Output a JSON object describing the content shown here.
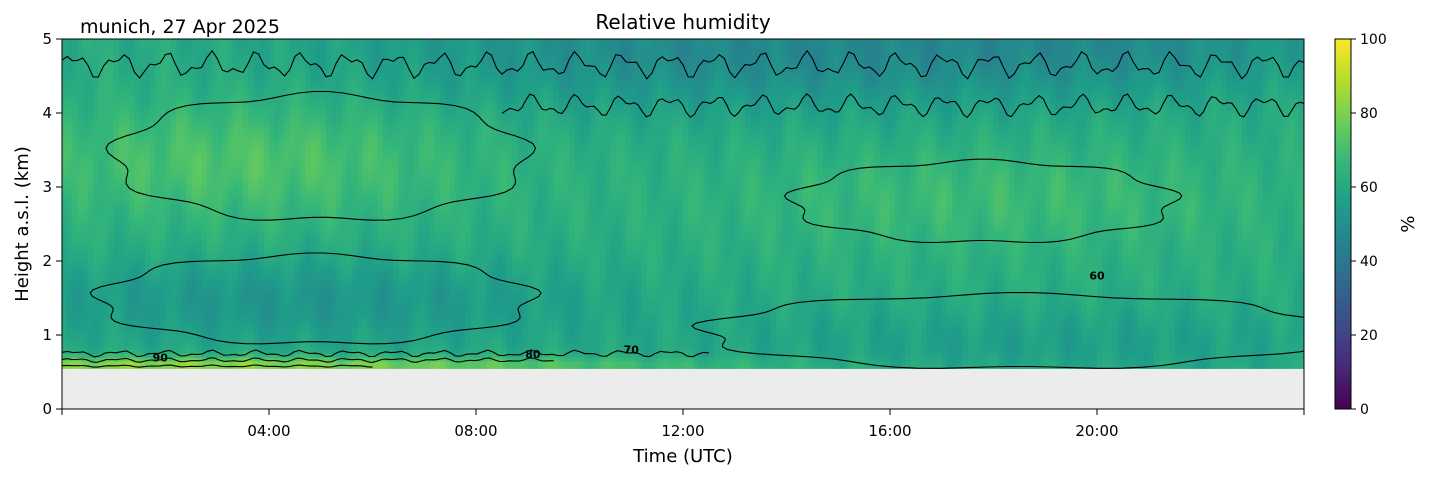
{
  "chart_data": {
    "type": "heatmap",
    "title": "Relative humidity",
    "location_label": "munich, 27 Apr 2025",
    "xlabel": "Time (UTC)",
    "ylabel": "Height a.s.l. (km)",
    "x_tick_labels": [
      "04:00",
      "08:00",
      "12:00",
      "16:00",
      "20:00"
    ],
    "x_tick_hours": [
      4,
      8,
      12,
      16,
      20
    ],
    "xlim_hours": [
      0,
      24
    ],
    "y_ticks": [
      0,
      1,
      2,
      3,
      4,
      5
    ],
    "ylim_km": [
      0,
      5
    ],
    "data_floor_km": 0.55,
    "colorbar": {
      "label": "%",
      "range": [
        0,
        100
      ],
      "ticks": [
        0,
        20,
        40,
        60,
        80,
        100
      ],
      "colormap": "viridis"
    },
    "contour_labels": [
      {
        "text": "90",
        "hour": 1.9,
        "km": 0.64
      },
      {
        "text": "80",
        "hour": 9.1,
        "km": 0.69
      },
      {
        "text": "70",
        "hour": 11.0,
        "km": 0.75
      },
      {
        "text": "60",
        "hour": 20.0,
        "km": 1.75
      }
    ],
    "colors": {
      "missing_data": "#ececec",
      "contour_line": "#000000"
    }
  }
}
